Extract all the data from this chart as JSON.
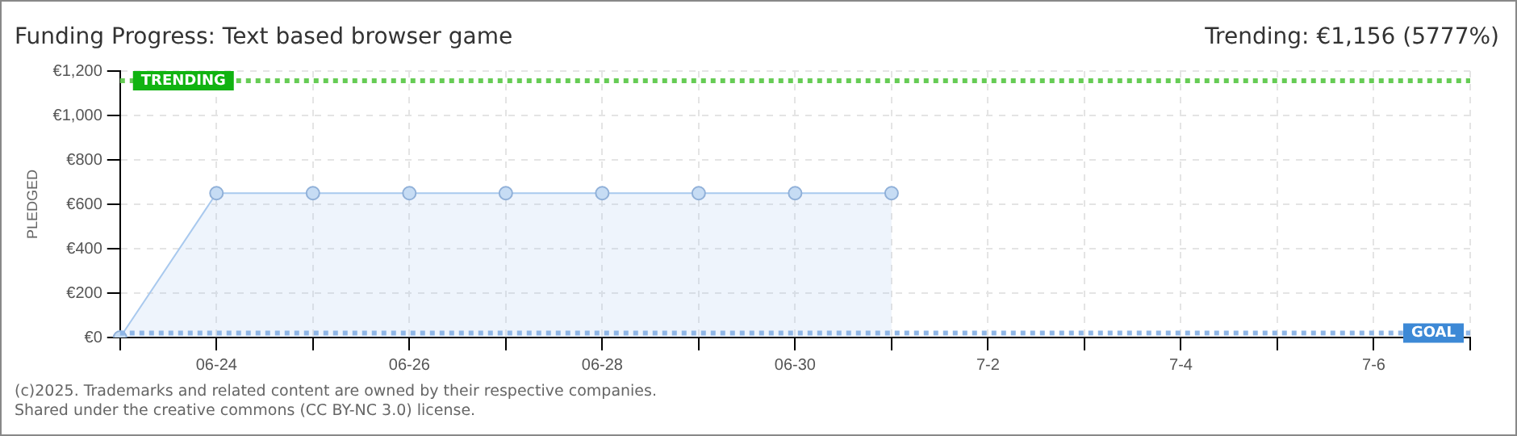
{
  "chart_data": {
    "type": "area",
    "title": "Funding Progress: Text based browser game",
    "subtitle": "Trending:  €1,156 (5777%)",
    "ylabel": "PLEDGED",
    "categories": [
      null,
      "06-24",
      null,
      "06-26",
      null,
      "06-28",
      null,
      "06-30",
      null,
      "7-2",
      null,
      "7-4",
      null,
      "7-6",
      null
    ],
    "series": [
      {
        "color": "#a9c9ee",
        "values": [
          0,
          650,
          650,
          650,
          650,
          650,
          650,
          650,
          650,
          null,
          null,
          null,
          null,
          null,
          null
        ]
      }
    ],
    "ylim": [
      0,
      1200
    ],
    "yticks": [
      {
        "value": 0,
        "label": "€0"
      },
      {
        "value": 200,
        "label": "€200"
      },
      {
        "value": 400,
        "label": "€400"
      },
      {
        "value": 600,
        "label": "€600"
      },
      {
        "value": 800,
        "label": "€800"
      },
      {
        "value": 1000,
        "label": "€1,000"
      },
      {
        "value": 1200,
        "label": "€1,200"
      }
    ],
    "ref_lines": [
      {
        "axis": "y",
        "value": 1156,
        "label": "TRENDING",
        "color": "#66cc55",
        "line_style": "dotted"
      },
      {
        "axis": "y",
        "value": 20,
        "label": "GOAL",
        "color": "#8fb6e6",
        "line_style": "dotted"
      }
    ],
    "grid": true,
    "marker": "circle",
    "legend": false,
    "annotations": [
      "(c)2025. Trademarks and related content are owned by their respective companies.",
      "Shared under the creative commons (CC BY-NC 3.0) license."
    ]
  }
}
